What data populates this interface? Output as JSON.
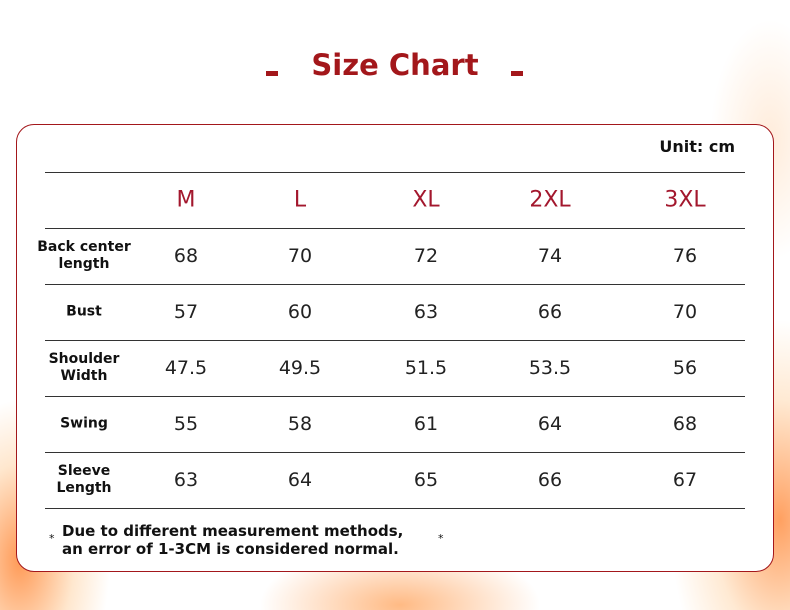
{
  "header": {
    "title": "Size Chart",
    "unit": "Unit: cm"
  },
  "table": {
    "columns": [
      "M",
      "L",
      "XL",
      "2XL",
      "3XL"
    ],
    "rows": [
      {
        "label": "Back center length",
        "values": [
          68,
          70,
          72,
          74,
          76
        ]
      },
      {
        "label": "Bust",
        "values": [
          57,
          60,
          63,
          66,
          70
        ]
      },
      {
        "label": "Shoulder Width",
        "values": [
          47.5,
          49.5,
          51.5,
          53.5,
          56
        ]
      },
      {
        "label": "Swing",
        "values": [
          55,
          58,
          61,
          64,
          68
        ]
      },
      {
        "label": "Sleeve Length",
        "values": [
          63,
          64,
          65,
          66,
          67
        ]
      }
    ]
  },
  "note": {
    "mark": "*",
    "text": "Due to different measurement methods, an error of 1-3CM is considered normal."
  }
}
